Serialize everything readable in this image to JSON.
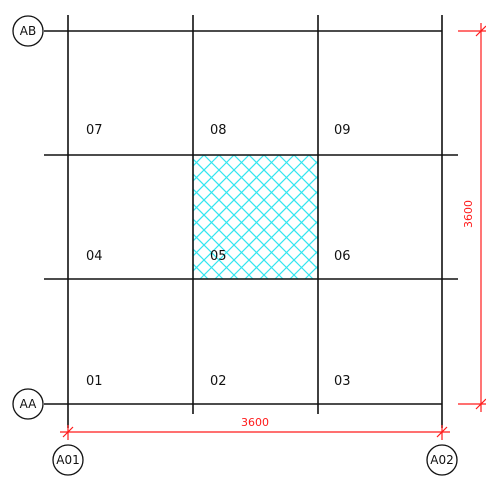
{
  "colors": {
    "lines": "#111111",
    "dimension": "#ff1a1a",
    "hatch": "#33e6f0",
    "background": "#ffffff"
  },
  "axes": {
    "top_row": "AB",
    "bottom_row": "AA",
    "left_col": "A01",
    "right_col": "A02"
  },
  "cells": [
    {
      "id": "c07",
      "label": "07"
    },
    {
      "id": "c08",
      "label": "08"
    },
    {
      "id": "c09",
      "label": "09"
    },
    {
      "id": "c04",
      "label": "04"
    },
    {
      "id": "c05",
      "label": "05",
      "hatched": true
    },
    {
      "id": "c06",
      "label": "06"
    },
    {
      "id": "c01",
      "label": "01"
    },
    {
      "id": "c02",
      "label": "02"
    },
    {
      "id": "c03",
      "label": "03"
    }
  ],
  "dimensions": {
    "horizontal": "3600",
    "vertical": "3600"
  }
}
